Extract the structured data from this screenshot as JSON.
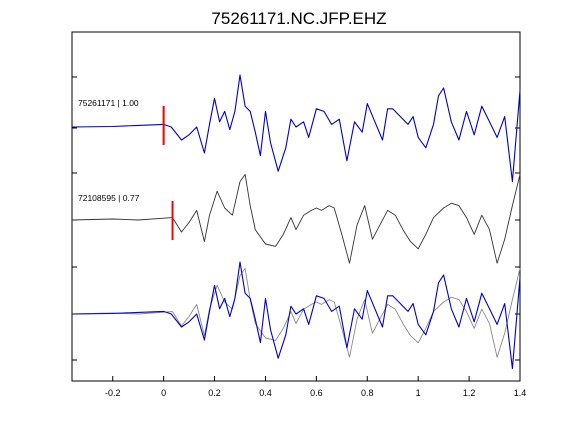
{
  "chart_data": {
    "type": "line",
    "title": "75261171.NC.JFP.EHZ",
    "xlabel": "",
    "ylabel": "",
    "xlim": [
      -0.36,
      1.4
    ],
    "x_ticks": [
      -0.2,
      0,
      0.2,
      0.4,
      0.6,
      0.8,
      1,
      1.2,
      1.4
    ],
    "x_tick_labels": [
      "-0.2",
      "0",
      "0.2",
      "0.4",
      "0.6",
      "0.8",
      "1",
      "1.2",
      "1.4"
    ],
    "grid": false,
    "colors": {
      "blue": "#0000cc",
      "gray": "#333333",
      "overlay_gray": "#888888",
      "pick": "#ff0000"
    },
    "traces": [
      {
        "label": "75261171 | 1.00",
        "color": "#0000cc",
        "pick_time": 0.0
      },
      {
        "label": "72108595 | 0.77",
        "color": "#333333",
        "pick_time": 0.035
      }
    ],
    "waveform_blue": {
      "t": [
        -0.36,
        -0.2,
        -0.1,
        0,
        0.03,
        0.07,
        0.1,
        0.13,
        0.16,
        0.18,
        0.2,
        0.22,
        0.24,
        0.26,
        0.28,
        0.3,
        0.32,
        0.34,
        0.36,
        0.38,
        0.4,
        0.42,
        0.45,
        0.48,
        0.5,
        0.52,
        0.55,
        0.57,
        0.6,
        0.63,
        0.66,
        0.69,
        0.72,
        0.75,
        0.78,
        0.8,
        0.83,
        0.86,
        0.88,
        0.9,
        0.93,
        0.96,
        0.98,
        1.0,
        1.03,
        1.06,
        1.08,
        1.1,
        1.13,
        1.16,
        1.19,
        1.22,
        1.25,
        1.28,
        1.31,
        1.34,
        1.37,
        1.4
      ],
      "y": [
        0,
        0.01,
        0.03,
        0.05,
        0,
        -0.25,
        -0.15,
        0,
        -0.5,
        0.05,
        0.55,
        0.1,
        0.3,
        -0.05,
        0.3,
        1.0,
        0.4,
        0.3,
        -0.1,
        -0.55,
        0.3,
        -0.3,
        -0.85,
        -0.4,
        0.15,
        0,
        0.1,
        -0.2,
        0.35,
        0.3,
        0.05,
        0.15,
        -0.65,
        0.1,
        -0.1,
        0.45,
        0.1,
        -0.25,
        0.35,
        0.35,
        0.2,
        0.05,
        0.2,
        -0.2,
        -0.4,
        0.05,
        0.6,
        0.75,
        0.1,
        -0.25,
        0.3,
        -0.15,
        0.4,
        0.1,
        -0.2,
        0.2,
        -1.05,
        0.7
      ]
    },
    "waveform_gray": {
      "t": [
        -0.36,
        -0.2,
        -0.1,
        0.035,
        0.07,
        0.1,
        0.13,
        0.16,
        0.18,
        0.21,
        0.24,
        0.27,
        0.3,
        0.32,
        0.34,
        0.36,
        0.4,
        0.44,
        0.47,
        0.5,
        0.52,
        0.55,
        0.58,
        0.6,
        0.62,
        0.65,
        0.67,
        0.7,
        0.73,
        0.76,
        0.79,
        0.82,
        0.85,
        0.88,
        0.91,
        0.94,
        0.97,
        1.0,
        1.03,
        1.06,
        1.1,
        1.13,
        1.16,
        1.19,
        1.22,
        1.25,
        1.28,
        1.31,
        1.34,
        1.37,
        1.4
      ],
      "y": [
        0,
        0.02,
        0,
        0.05,
        -0.25,
        -0.05,
        0.2,
        -0.45,
        0.1,
        0.6,
        0.25,
        0.1,
        0.8,
        0.95,
        0.3,
        -0.2,
        -0.5,
        -0.55,
        -0.3,
        0.05,
        -0.2,
        0.1,
        0.2,
        0.25,
        0.2,
        0.3,
        0.25,
        -0.3,
        -0.9,
        -0.1,
        0.3,
        -0.4,
        -0.1,
        0.2,
        0.1,
        -0.2,
        -0.45,
        -0.6,
        -0.3,
        0.05,
        0.25,
        0.35,
        0.3,
        0.05,
        -0.3,
        0.1,
        -0.2,
        -0.9,
        -0.4,
        0.3,
        0.95
      ]
    }
  }
}
